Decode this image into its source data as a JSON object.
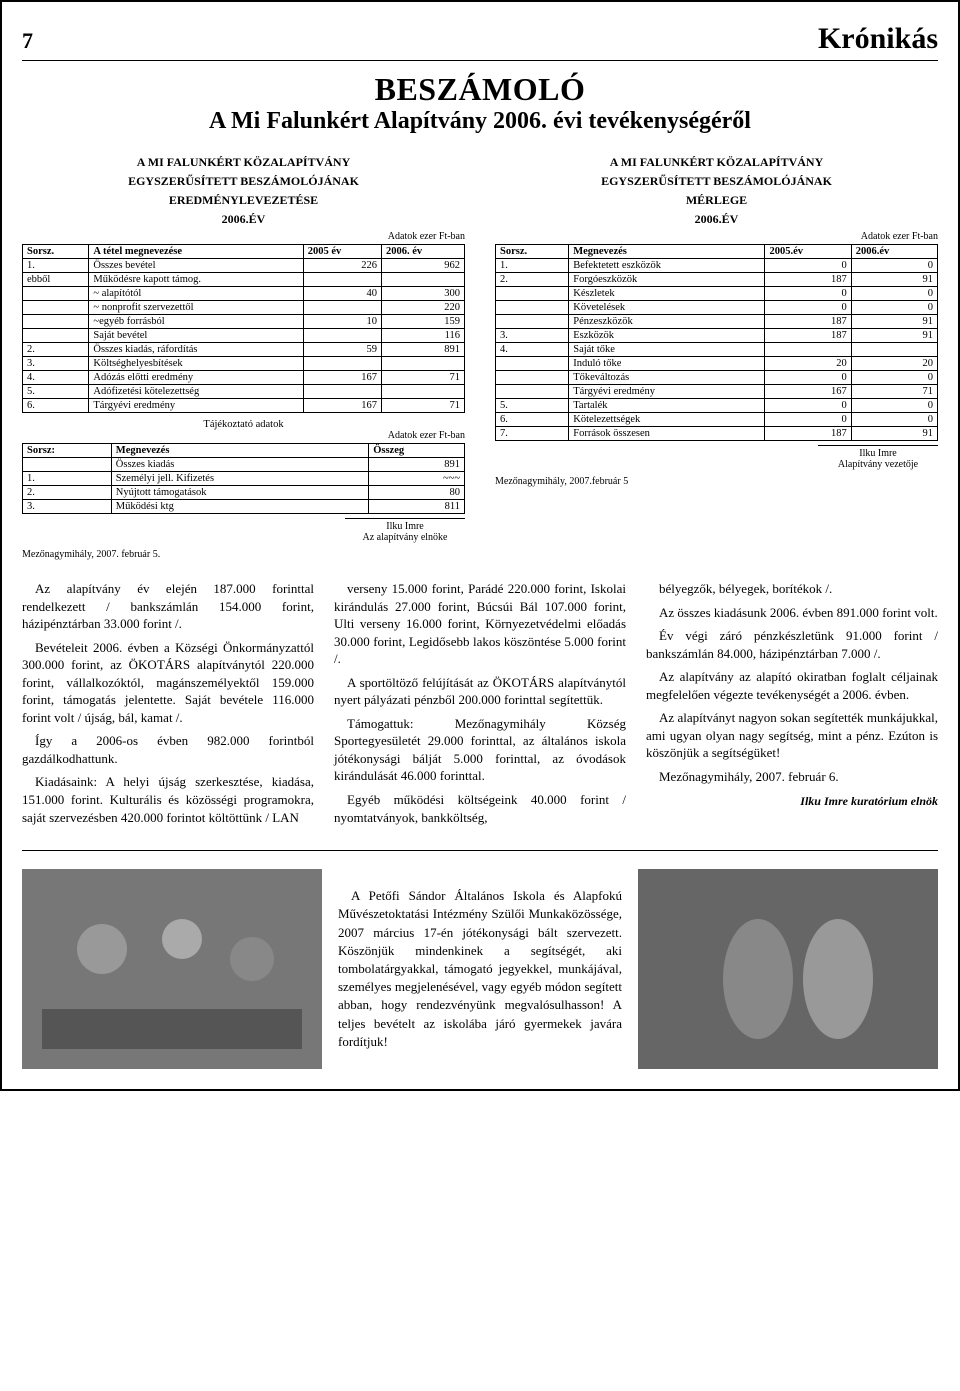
{
  "header": {
    "page_number": "7",
    "masthead": "Krónikás"
  },
  "title": {
    "line1": "BESZÁMOLÓ",
    "line2": "A Mi Falunkért Alapítvány 2006. évi tevékenységéről"
  },
  "left_block": {
    "heading1": "A MI FALUNKÉRT KÖZALAPÍTVÁNY",
    "heading2": "EGYSZERŰSÍTETT BESZÁMOLÓJÁNAK",
    "heading3": "EREDMÉNYLEVEZETÉSE",
    "heading4": "2006.év",
    "unit": "Adatok ezer Ft-ban",
    "table1": {
      "headers": [
        "Sorsz.",
        "A tétel megnevezése",
        "2005 év",
        "2006. év"
      ],
      "rows": [
        [
          "1.",
          "Összes bevétel",
          "226",
          "962"
        ],
        [
          "ebből",
          "Működésre kapott támog.",
          "",
          ""
        ],
        [
          "",
          "~ alapítótól",
          "40",
          "300"
        ],
        [
          "",
          "~ nonprofit szervezettől",
          "",
          "220"
        ],
        [
          "",
          "~egyéb forrásból",
          "10",
          "159"
        ],
        [
          "",
          "Saját bevétel",
          "",
          "116"
        ],
        [
          "2.",
          "Összes kiadás, ráfordítás",
          "59",
          "891"
        ],
        [
          "3.",
          "Költséghelyesbítések",
          "",
          ""
        ],
        [
          "4.",
          "Adózás előtti eredmény",
          "167",
          "71"
        ],
        [
          "5.",
          "Adófizetési kötelezettség",
          "",
          ""
        ],
        [
          "6.",
          "Tárgyévi eredmény",
          "167",
          "71"
        ]
      ]
    },
    "table2_title": "Tájékoztató adatok",
    "table2_unit": "Adatok ezer Ft-ban",
    "table2": {
      "headers": [
        "Sorsz:",
        "Megnevezés",
        "Összeg"
      ],
      "rows": [
        [
          "",
          "Összes kiadás",
          "891"
        ],
        [
          "1.",
          "Személyi jell. Kifizetés",
          "~~~"
        ],
        [
          "2.",
          "Nyújtott támogatások",
          "80"
        ],
        [
          "3.",
          "Működési ktg",
          "811"
        ]
      ]
    },
    "sig_name": "Ilku Imre",
    "sig_title": "Az alapítvány elnöke",
    "date": "Mezőnagymihály, 2007. február 5."
  },
  "right_block": {
    "heading1": "A MI FALUNKÉRT KÖZALAPÍTVÁNY",
    "heading2": "EGYSZERŰSÍTETT BESZÁMOLÓJÁNAK",
    "heading3": "MÉRLEGE",
    "heading4": "2006.év",
    "unit": "Adatok ezer Ft-ban",
    "table": {
      "headers": [
        "Sorsz.",
        "Megnevezés",
        "2005.év",
        "2006.év"
      ],
      "rows": [
        [
          "1.",
          "Befektetett eszközök",
          "0",
          "0"
        ],
        [
          "2.",
          "Forgóeszközök",
          "187",
          "91"
        ],
        [
          "",
          "Készletek",
          "0",
          "0"
        ],
        [
          "",
          "Követelések",
          "0",
          "0"
        ],
        [
          "",
          "Pénzeszközök",
          "187",
          "91"
        ],
        [
          "3.",
          "Eszközök",
          "187",
          "91"
        ],
        [
          "4.",
          "Saját tőke",
          "",
          ""
        ],
        [
          "",
          "Induló tőke",
          "20",
          "20"
        ],
        [
          "",
          "Tőkeváltozás",
          "0",
          "0"
        ],
        [
          "",
          "Tárgyévi eredmény",
          "167",
          "71"
        ],
        [
          "5.",
          "Tartalék",
          "0",
          "0"
        ],
        [
          "6.",
          "Kötelezettségek",
          "0",
          "0"
        ],
        [
          "7.",
          "Források összesen",
          "187",
          "91"
        ]
      ]
    },
    "sig_name": "Ilku Imre",
    "sig_title": "Alapítvány vezetője",
    "date": "Mezőnagymihály, 2007.február 5"
  },
  "body": {
    "col1": [
      "Az alapítvány év elején 187.000 forinttal rendelkezett / bankszámlán 154.000 forint, házipénztárban 33.000 forint /.",
      "Bevételeit 2006. évben a Községi Önkormányzattól 300.000 forint, az ÖKOTÁRS alapítványtól 220.000 forint, vállalkozóktól, magánszemélyektől 159.000 forint, támogatás jelentette. Saját bevétele 116.000 forint volt / újság, bál, kamat /.",
      "Így a 2006-os évben 982.000 forintból gazdálkodhattunk.",
      "Kiadásaink: A helyi újság szerkesztése, kiadása, 151.000 forint. Kulturális és közösségi programokra, saját szervezésben 420.000 forintot költöttünk / LAN"
    ],
    "col2": [
      "verseny 15.000 forint, Parádé 220.000 forint, Iskolai kirándulás 27.000 forint, Búcsúi Bál 107.000 forint, Ulti verseny 16.000 forint, Környezetvédelmi előadás 30.000 forint, Legidősebb lakos köszöntése 5.000 forint /.",
      "A sportöltöző felújítását az ÖKOTÁRS alapítványtól nyert pályázati pénzből 200.000 forinttal segítettük.",
      "Támogattuk: Mezőnagymihály Község Sportegyesületét 29.000 forinttal, az általános iskola jótékonysági bálját 5.000 forinttal, az óvodások kirándulását 46.000 forinttal.",
      "Egyéb működési költségeink 40.000 forint / nyomtatványok, bankköltség,"
    ],
    "col3": [
      "bélyegzők, bélyegek, borítékok /.",
      "Az összes kiadásunk 2006. évben 891.000 forint volt.",
      "Év végi záró pénzkészletünk 91.000 forint / bankszámlán 84.000, házipénztárban 7.000 /.",
      "Az alapítvány az alapító okiratban foglalt céljainak megfelelően végezte tevékenységét a 2006. évben.",
      "Az alapítványt nagyon sokan segítették munkájukkal, ami ugyan olyan nagy segítség, mint a pénz. Ezúton is köszönjük a segítségüket!",
      "Mezőnagymihály, 2007. február 6."
    ],
    "byline": "Ilku Imre kuratórium elnök"
  },
  "photo_caption": "A Petőfi Sándor Általános Iskola és Alapfokú Művészetoktatási Intézmény Szülői Munkaközössége, 2007 március 17-én jótékonysági bált szervezett. Köszönjük mindenkinek a segítségét, aki tombolatárgyakkal, támogató jegyekkel, munkájával, személyes megjelenésével, vagy egyéb módon segített abban, hogy rendezvényünk megvalósulhasson! A teljes bevételt az iskolába járó gyermekek javára fordítjuk!"
}
